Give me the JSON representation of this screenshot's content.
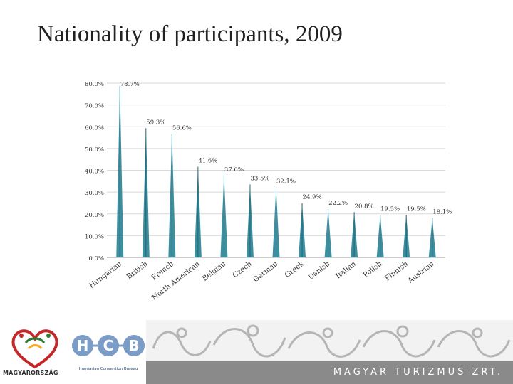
{
  "slide": {
    "title": "Nationality of participants, 2009"
  },
  "chart_data": {
    "type": "bar",
    "categories": [
      "Hungarian",
      "British",
      "French",
      "North American",
      "Belgian",
      "Czech",
      "German",
      "Greek",
      "Danish",
      "Italian",
      "Polish",
      "Finnish",
      "Austrian"
    ],
    "values": [
      78.7,
      59.3,
      56.6,
      41.6,
      37.6,
      33.5,
      32.1,
      24.9,
      22.2,
      20.8,
      19.5,
      19.5,
      18.1
    ],
    "data_labels": [
      "78.7%",
      "59.3%",
      "56.6%",
      "41.6%",
      "37.6%",
      "33.5%",
      "32.1%",
      "24.9%",
      "22.2%",
      "20.8%",
      "19.5%",
      "19.5%",
      "18.1%"
    ],
    "yticks": [
      "0.0%",
      "10.0%",
      "20.0%",
      "30.0%",
      "40.0%",
      "50.0%",
      "60.0%",
      "70.0%",
      "80.0%"
    ],
    "ylim": [
      0,
      80
    ],
    "xlabel": "",
    "ylabel": "",
    "colors": {
      "bar": "#3d8fa0",
      "bar_dark": "#1f6473",
      "grid": "#d9d9d9",
      "text": "#333333"
    }
  },
  "footer": {
    "band_text": "MAGYAR TURIZMUS ZRT.",
    "band_color": "#8a8a8a",
    "logo_left_text": "MAGYARORSZÁG",
    "logo_hcb_letters": [
      "H",
      "C",
      "B"
    ],
    "logo_hcb_name": "Hungarian Convention Bureau",
    "hcb_color": "#2b4a7a"
  }
}
